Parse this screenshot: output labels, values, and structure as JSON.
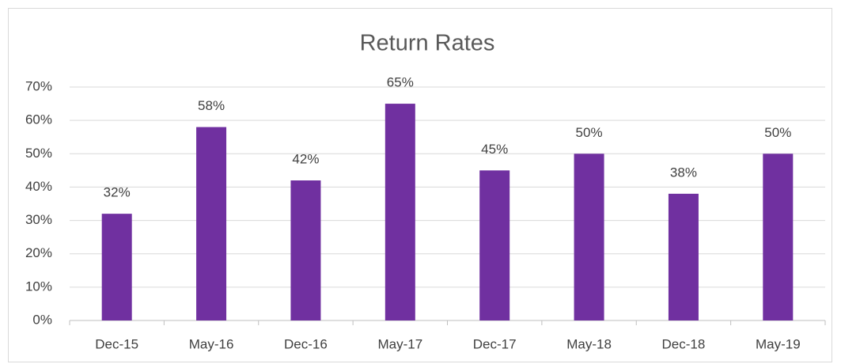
{
  "chart_data": {
    "type": "bar",
    "title": "Return Rates",
    "categories": [
      "Dec-15",
      "May-16",
      "Dec-16",
      "May-17",
      "Dec-17",
      "May-18",
      "Dec-18",
      "May-19"
    ],
    "values": [
      32,
      58,
      42,
      65,
      45,
      50,
      38,
      50
    ],
    "value_labels": [
      "32%",
      "58%",
      "42%",
      "65%",
      "45%",
      "50%",
      "38%",
      "50%"
    ],
    "color": "#7030a0",
    "ylim": [
      0,
      70
    ],
    "yticks": [
      {
        "value": 0,
        "label": "0%"
      },
      {
        "value": 10,
        "label": "10%"
      },
      {
        "value": 20,
        "label": "20%"
      },
      {
        "value": 30,
        "label": "30%"
      },
      {
        "value": 40,
        "label": "40%"
      },
      {
        "value": 50,
        "label": "50%"
      },
      {
        "value": 60,
        "label": "60%"
      },
      {
        "value": 70,
        "label": "70%"
      }
    ],
    "grid": true
  }
}
